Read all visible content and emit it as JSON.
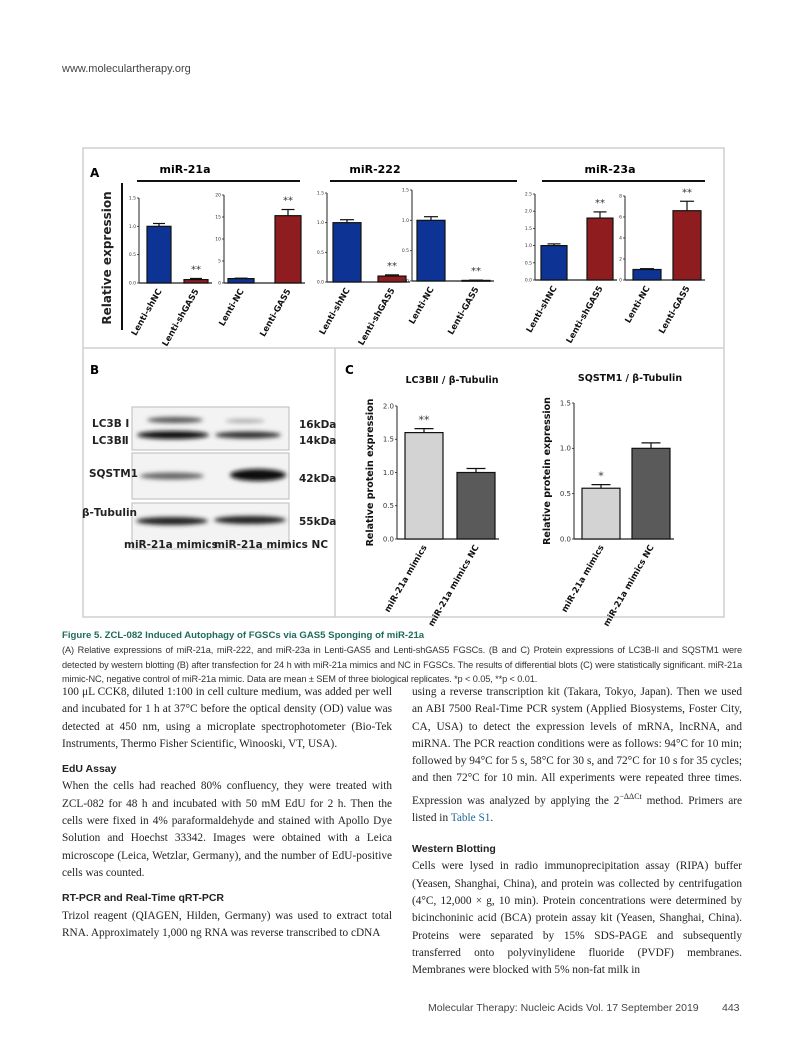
{
  "header": {
    "site": "www.moleculartherapy.org"
  },
  "figure": {
    "panel_labels": [
      "A",
      "B",
      "C"
    ],
    "panel_a": {
      "ylabel": "Relative expression",
      "groups": [
        "miR-21a",
        "miR-222",
        "miR-23a"
      ]
    },
    "panel_b": {
      "band_labels": [
        "LC3B Ⅰ",
        "LC3BⅡ",
        "SQSTM1",
        "β-Tubulin"
      ],
      "sizes": [
        "16kDa",
        "14kDa",
        "42kDa",
        "55kDa"
      ],
      "lanes": [
        "miR-21a mimics",
        "miR-21a mimics NC"
      ]
    },
    "panel_c": {
      "ylabel": "Relative protein expression"
    }
  },
  "chart_data": [
    {
      "type": "bar",
      "panel": "A",
      "group": "miR-21a",
      "categories": [
        "Lenti-shNC",
        "Lenti-shGAS5"
      ],
      "values": [
        1.0,
        0.06
      ],
      "errors": [
        0.05,
        0.02
      ],
      "ylim": [
        0,
        1.5
      ],
      "ticks": [
        "0.0",
        "0.5",
        "1.0",
        "1.5"
      ],
      "colors": [
        "#0d3494",
        "#8f1d1f"
      ],
      "significance": [
        "",
        "**"
      ]
    },
    {
      "type": "bar",
      "panel": "A",
      "group": "miR-21a",
      "categories": [
        "Lenti-NC",
        "Lenti-GAS5"
      ],
      "values": [
        1.0,
        15.3
      ],
      "errors": [
        0.1,
        1.4
      ],
      "ylim": [
        0,
        20
      ],
      "ticks": [
        "0",
        "5",
        "10",
        "15",
        "20"
      ],
      "colors": [
        "#0d3494",
        "#8f1d1f"
      ],
      "significance": [
        "",
        "**"
      ]
    },
    {
      "type": "bar",
      "panel": "A",
      "group": "miR-222",
      "categories": [
        "Lenti-shNC",
        "Lenti-shGAS5"
      ],
      "values": [
        1.0,
        0.1
      ],
      "errors": [
        0.05,
        0.02
      ],
      "ylim": [
        0,
        1.5
      ],
      "ticks": [
        "0.0",
        "0.5",
        "1.0",
        "1.5"
      ],
      "colors": [
        "#0d3494",
        "#8f1d1f"
      ],
      "significance": [
        "",
        "**"
      ]
    },
    {
      "type": "bar",
      "panel": "A",
      "group": "miR-222",
      "categories": [
        "Lenti-NC",
        "Lenti-GAS5"
      ],
      "values": [
        1.0,
        0.01
      ],
      "errors": [
        0.06,
        0.005
      ],
      "ylim": [
        0,
        1.5
      ],
      "ticks": [
        "0.0",
        "0.5",
        "1.0",
        "1.5"
      ],
      "colors": [
        "#0d3494",
        "#8f1d1f"
      ],
      "significance": [
        "",
        "**"
      ]
    },
    {
      "type": "bar",
      "panel": "A",
      "group": "miR-23a",
      "categories": [
        "Lenti-shNC",
        "Lenti-shGAS5"
      ],
      "values": [
        1.0,
        1.8
      ],
      "errors": [
        0.05,
        0.18
      ],
      "ylim": [
        0,
        2.5
      ],
      "ticks": [
        "0.0",
        "0.5",
        "1.0",
        "1.5",
        "2.0",
        "2.5"
      ],
      "colors": [
        "#0d3494",
        "#8f1d1f"
      ],
      "significance": [
        "",
        "**"
      ]
    },
    {
      "type": "bar",
      "panel": "A",
      "group": "miR-23a",
      "categories": [
        "Lenti-NC",
        "Lenti-GAS5"
      ],
      "values": [
        1.0,
        6.6
      ],
      "errors": [
        0.08,
        0.9
      ],
      "ylim": [
        0,
        8
      ],
      "ticks": [
        "0",
        "2",
        "4",
        "6",
        "8"
      ],
      "colors": [
        "#0d3494",
        "#8f1d1f"
      ],
      "significance": [
        "",
        "**"
      ]
    },
    {
      "type": "bar",
      "panel": "C",
      "title": "LC3BⅡ / β-Tubulin",
      "ylabel": "Relative protein expression",
      "categories": [
        "miR-21a mimics",
        "miR-21a mimics NC"
      ],
      "values": [
        1.6,
        1.0
      ],
      "errors": [
        0.06,
        0.06
      ],
      "ylim": [
        0,
        2.0
      ],
      "ticks": [
        "0.0",
        "0.5",
        "1.0",
        "1.5",
        "2.0"
      ],
      "colors": [
        "#d3d3d3",
        "#5a5a5a"
      ],
      "significance": [
        "**",
        ""
      ]
    },
    {
      "type": "bar",
      "panel": "C",
      "title": "SQSTM1 / β-Tubulin",
      "ylabel": "Relative protein expression",
      "categories": [
        "miR-21a mimics",
        "miR-21a mimics NC"
      ],
      "values": [
        0.56,
        1.0
      ],
      "errors": [
        0.04,
        0.06
      ],
      "ylim": [
        0,
        1.5
      ],
      "ticks": [
        "0.0",
        "0.5",
        "1.0",
        "1.5"
      ],
      "colors": [
        "#d3d3d3",
        "#5a5a5a"
      ],
      "significance": [
        "*",
        ""
      ]
    }
  ],
  "caption": {
    "title": "Figure 5. ZCL-082 Induced Autophagy of FGSCs via GAS5 Sponging of miR-21a",
    "body": "(A) Relative expressions of miR-21a, miR-222, and miR-23a in Lenti-GAS5 and Lenti-shGAS5 FGSCs. (B and C) Protein expressions of LC3B-II and SQSTM1 were detected by western blotting (B) after transfection for 24 h with miR-21a mimics and NC in FGSCs. The results of differential blots (C) were statistically significant. miR-21a mimic-NC, negative control of miR-21a mimic. Data are mean ± SEM of three biological replicates. *p < 0.05, **p < 0.01."
  },
  "body": {
    "left": {
      "p1": "100 μL CCK8, diluted 1:100 in cell culture medium, was added per well and incubated for 1 h at 37°C before the optical density (OD) value was detected at 450 nm, using a microplate spectrophotometer (Bio-Tek Instruments, Thermo Fisher Scientific, Winooski, VT, USA).",
      "h1": "EdU Assay",
      "p2": "When the cells had reached 80% confluency, they were treated with ZCL-082 for 48 h and incubated with 50 mM EdU for 2 h. Then the cells were fixed in 4% paraformaldehyde and stained with Apollo Dye Solution and Hoechst 33342. Images were obtained with a Leica microscope (Leica, Wetzlar, Germany), and the number of EdU-positive cells was counted.",
      "h2": "RT-PCR and Real-Time qRT-PCR",
      "p3": "Trizol reagent (QIAGEN, Hilden, Germany) was used to extract total RNA. Approximately 1,000 ng RNA was reverse transcribed to cDNA"
    },
    "right": {
      "p1a": "using a reverse transcription kit (Takara, Tokyo, Japan). Then we used an ABI 7500 Real-Time PCR system (Applied Biosystems, Foster City, CA, USA) to detect the expression levels of mRNA, lncRNA, and miRNA. The PCR reaction conditions were as follows: 94°C for 10 min; followed by 94°C for 5 s, 58°C for 30 s, and 72°C for 10 s for 35 cycles; and then 72°C for 10 min. All experiments were repeated three times. Expression was analyzed by applying the 2",
      "p1sup": "−ΔΔCt",
      "p1b": " method. Primers are listed in ",
      "p1link": "Table S1",
      "p1c": ".",
      "h1": "Western Blotting",
      "p2": "Cells were lysed in radio immunoprecipitation assay (RIPA) buffer (Yeasen, Shanghai, China), and protein was collected by centrifugation (4°C, 12,000 × g, 10 min). Protein concentrations were determined by bicinchoninic acid (BCA) protein assay kit (Yeasen, Shanghai, China). Proteins were separated by 15% SDS-PAGE and subsequently transferred onto polyvinylidene fluoride (PVDF) membranes. Membranes were blocked with 5% non-fat milk in"
    }
  },
  "footer": {
    "journal": "Molecular Therapy: Nucleic Acids Vol. 17 September 2019",
    "page": "443"
  }
}
